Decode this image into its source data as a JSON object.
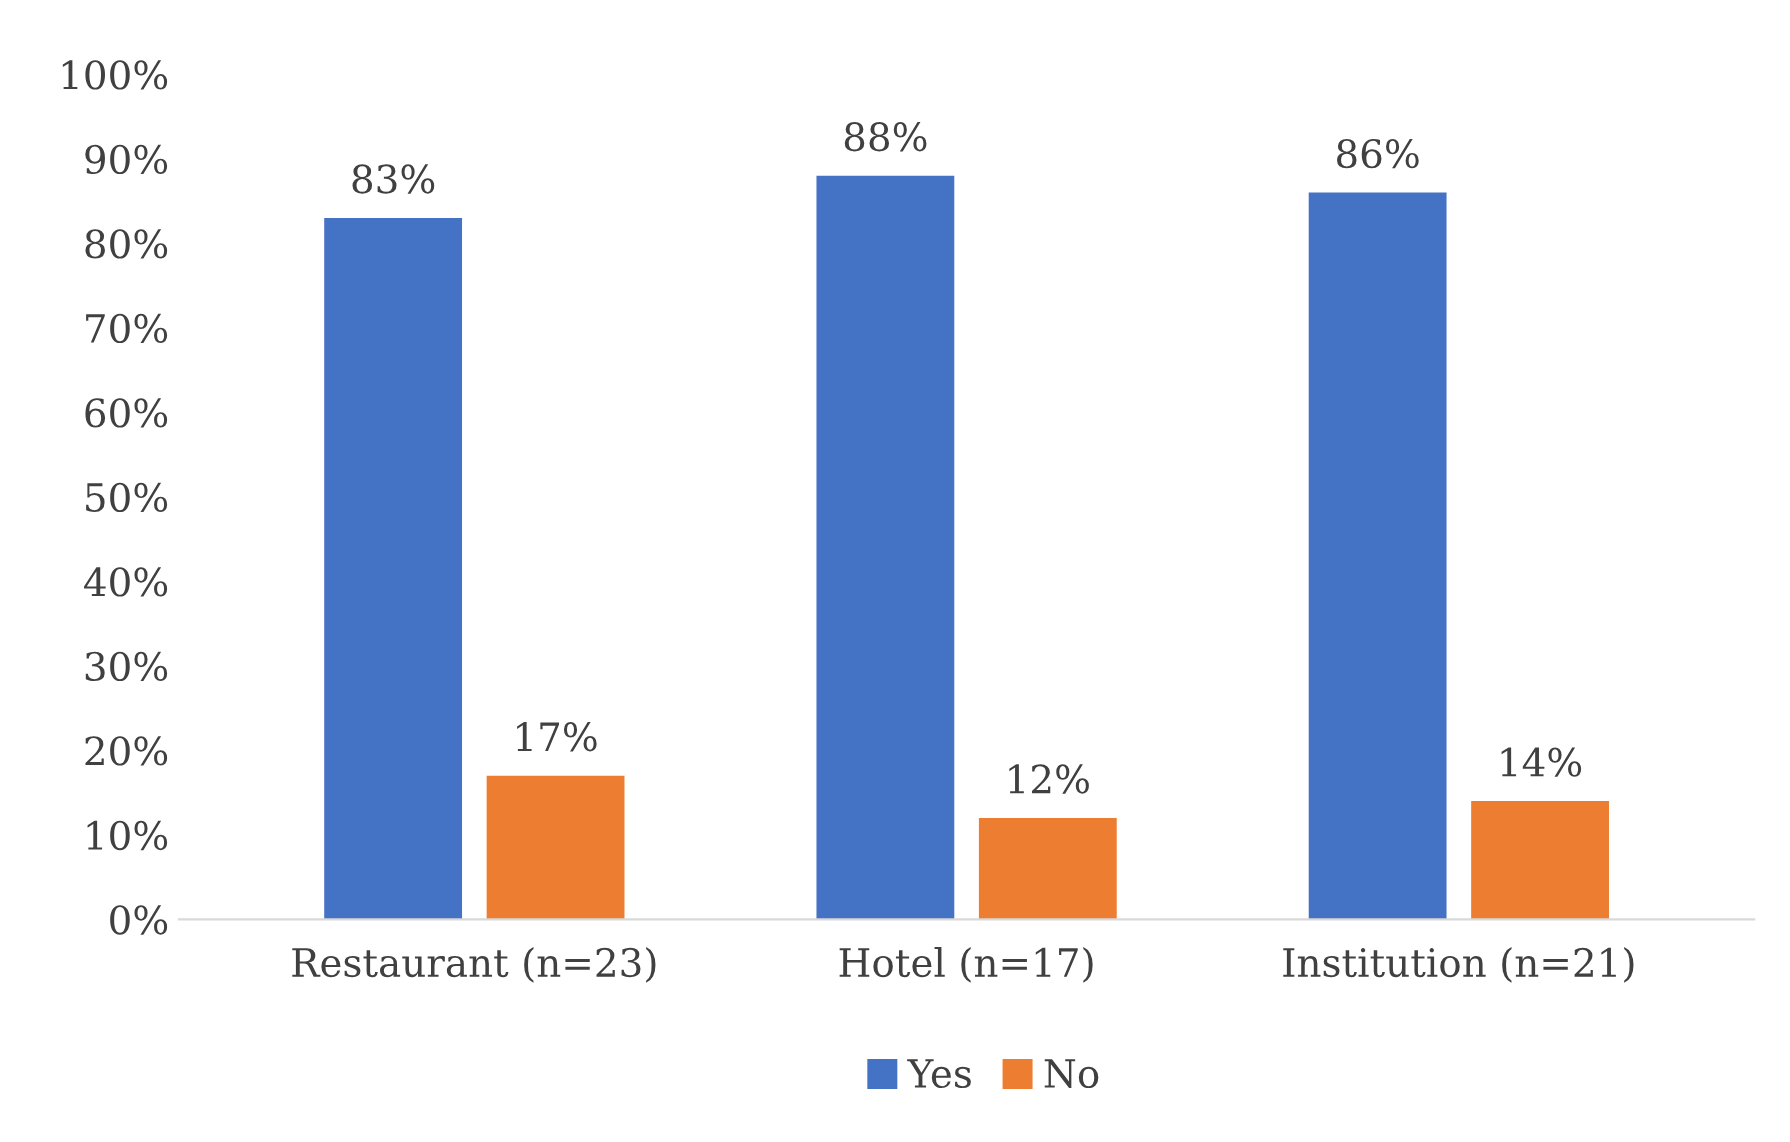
{
  "chart_data": {
    "type": "bar",
    "categories": [
      "Restaurant (n=23)",
      "Hotel (n=17)",
      "Institution (n=21)"
    ],
    "series": [
      {
        "name": "Yes",
        "color": "#4472c4",
        "values": [
          83,
          88,
          86
        ],
        "value_labels": [
          "83%",
          "88%",
          "86%"
        ]
      },
      {
        "name": "No",
        "color": "#ed7d31",
        "values": [
          17,
          12,
          14
        ],
        "value_labels": [
          "17%",
          "12%",
          "14%"
        ]
      }
    ],
    "ylim": [
      0,
      100
    ],
    "yticks": [
      {
        "value": 0,
        "label": "0%"
      },
      {
        "value": 10,
        "label": "10%"
      },
      {
        "value": 20,
        "label": "20%"
      },
      {
        "value": 30,
        "label": "30%"
      },
      {
        "value": 40,
        "label": "40%"
      },
      {
        "value": 50,
        "label": "50%"
      },
      {
        "value": 60,
        "label": "60%"
      },
      {
        "value": 70,
        "label": "70%"
      },
      {
        "value": 80,
        "label": "80%"
      },
      {
        "value": 90,
        "label": "90%"
      },
      {
        "value": 100,
        "label": "100%"
      }
    ],
    "grid": false,
    "legend": "bottom"
  }
}
